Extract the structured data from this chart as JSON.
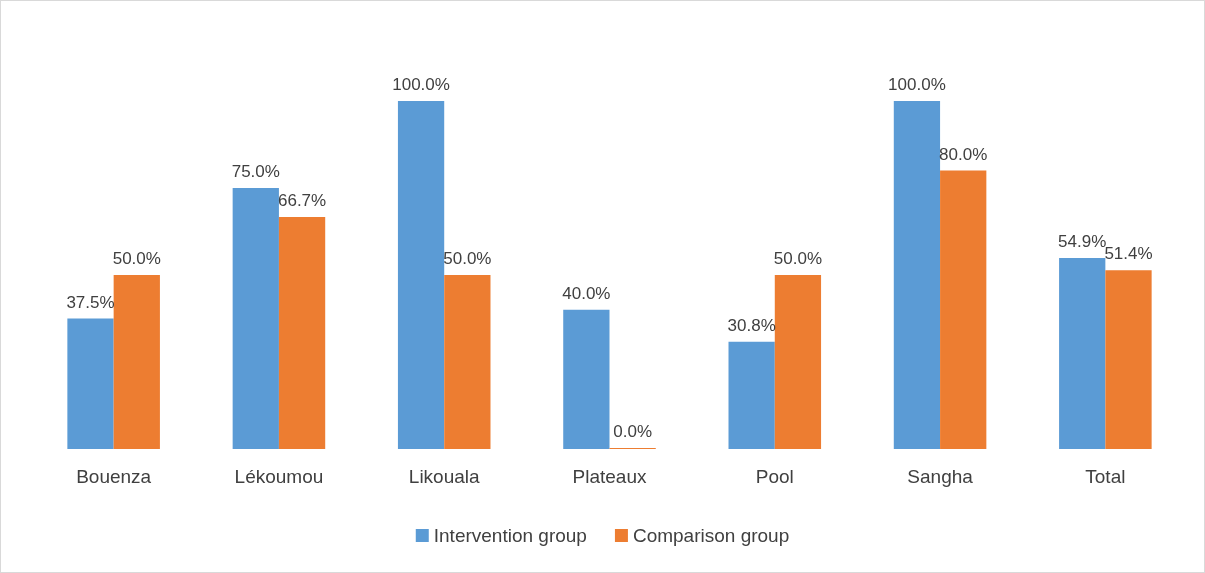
{
  "chart_data": {
    "type": "bar",
    "categories": [
      "Bouenza",
      "Lékoumou",
      "Likouala",
      "Plateaux",
      "Pool",
      "Sangha",
      "Total"
    ],
    "series": [
      {
        "name": "Intervention group",
        "color": "#5b9bd5",
        "values": [
          37.5,
          75.0,
          100.0,
          40.0,
          30.8,
          100.0,
          54.9
        ],
        "value_labels": [
          "37.5%",
          "75.0%",
          "100.0%",
          "40.0%",
          "30.8%",
          "100.0%",
          "54.9%"
        ]
      },
      {
        "name": "Comparison group",
        "color": "#ed7d31",
        "values": [
          50.0,
          66.7,
          50.0,
          0.0,
          50.0,
          80.0,
          51.4
        ],
        "value_labels": [
          "50.0%",
          "66.7%",
          "50.0%",
          "0.0%",
          "50.0%",
          "80.0%",
          "51.4%"
        ]
      }
    ],
    "legend": "bottom"
  }
}
